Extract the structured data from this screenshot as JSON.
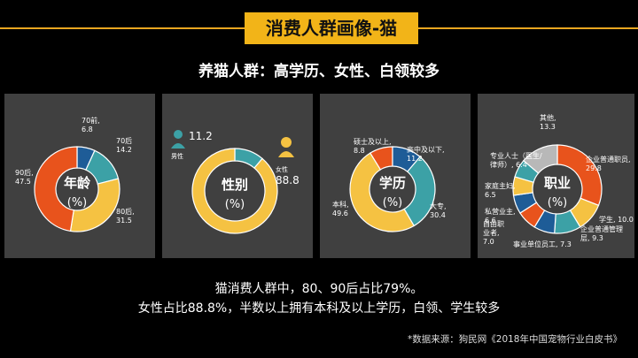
{
  "header": {
    "title": "消费人群画像-猫",
    "subtitle": "养猫人群：高学历、女性、白领较多"
  },
  "summary": {
    "line1": "猫消费人群中，80、90后占比79%。",
    "line2": "女性占比88.8%，半数以上拥有本科及以上学历，白领、学生较多"
  },
  "source": "*数据来源：狗民网《2018年中国宠物行业白皮书》",
  "colors": {
    "orange": "#e8531c",
    "blue": "#1e5c97",
    "teal": "#3ca1a6",
    "yellow": "#f5c242",
    "gray": "#b8b8b8"
  },
  "chart_data": [
    {
      "type": "pie",
      "center_label": "年龄",
      "unit": "(%)",
      "slices": [
        {
          "label": "70前",
          "value": 6.8,
          "color": "#1e5c97"
        },
        {
          "label": "70后",
          "value": 14.2,
          "color": "#3ca1a6"
        },
        {
          "label": "80后",
          "value": 31.5,
          "color": "#f5c242"
        },
        {
          "label": "90后",
          "value": 47.5,
          "color": "#e8531c"
        }
      ]
    },
    {
      "type": "pie",
      "center_label": "性别",
      "unit": "(%)",
      "slices": [
        {
          "label": "男性",
          "value": 11.2,
          "color": "#3ca1a6"
        },
        {
          "label": "女性",
          "value": 88.8,
          "color": "#f5c242"
        }
      ]
    },
    {
      "type": "pie",
      "center_label": "学历",
      "unit": "(%)",
      "slices": [
        {
          "label": "硕士及以上",
          "value": 8.8,
          "color": "#e8531c"
        },
        {
          "label": "高中及以下",
          "value": 11.2,
          "color": "#1e5c97"
        },
        {
          "label": "大专",
          "value": 30.4,
          "color": "#3ca1a6"
        },
        {
          "label": "本科",
          "value": 49.6,
          "color": "#f5c242"
        }
      ]
    },
    {
      "type": "pie",
      "center_label": "职业",
      "unit": "(%)",
      "slices": [
        {
          "label": "企业普通职员",
          "value": 29.8,
          "color": "#e8531c"
        },
        {
          "label": "学生",
          "value": 10.0,
          "color": "#f5c242"
        },
        {
          "label": "企业普通管理层",
          "value": 9.3,
          "color": "#3ca1a6"
        },
        {
          "label": "事业单位员工",
          "value": 7.3,
          "color": "#1e5c97"
        },
        {
          "label": "自由职业者",
          "value": 7.0,
          "color": "#e8531c"
        },
        {
          "label": "私营业主",
          "value": 6.6,
          "color": "#1e5c97"
        },
        {
          "label": "家庭主妇",
          "value": 6.5,
          "color": "#f5c242"
        },
        {
          "label": "专业人士（医生/律师）",
          "value": 6.4,
          "color": "#3ca1a6"
        },
        {
          "label": "其他",
          "value": 13.3,
          "color": "#b8b8b8"
        }
      ]
    }
  ],
  "value_labels": {
    "age": [
      "70前,\n6.8",
      "70后\n14.2",
      "80后,\n31.5",
      "90后,\n47.5"
    ],
    "gender": [
      "11.2",
      "男性",
      "女性",
      "88.8"
    ],
    "edu": [
      "硕士及以上,\n8.8",
      "高中及以下,\n11.2",
      "大专,\n30.4",
      "本科,\n49.6"
    ],
    "job": [
      "其他,\n13.3",
      "企业普通职员,\n29.8",
      "学生, 10.0",
      "企业普通管理\n层, 9.3",
      "事业单位员工, 7.3",
      "自由职\n业者,\n7.0",
      "私营业主,\n6.6",
      "家庭主妇,\n6.5",
      "专业人士（医生/\n律师）, 6.4"
    ]
  }
}
